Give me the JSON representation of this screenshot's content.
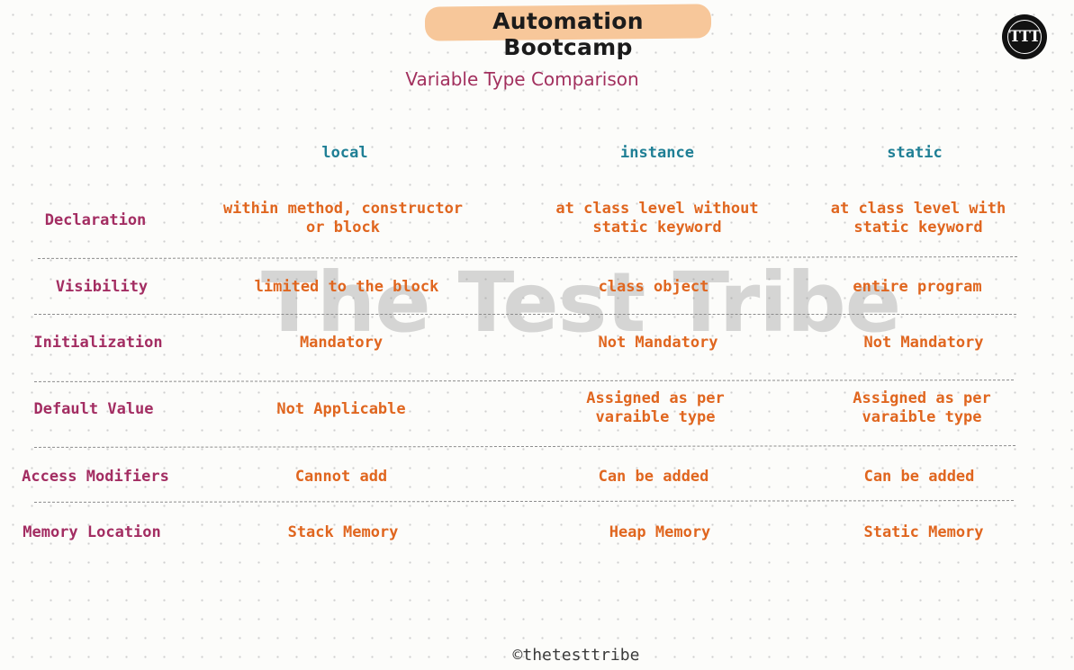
{
  "header": {
    "title": "Automation Bootcamp",
    "subtitle": "Variable Type Comparison",
    "logo_text": "TTT",
    "watermark": "The Test Tribe"
  },
  "table": {
    "columns": [
      "local",
      "instance",
      "static"
    ],
    "rows": [
      {
        "label": "Declaration",
        "local": "within method, constructor or block",
        "instance": "at class level without static keyword",
        "static": "at class level with static keyword"
      },
      {
        "label": "Visibility",
        "local": "limited to the block",
        "instance": "class object",
        "static": "entire program"
      },
      {
        "label": "Initialization",
        "local": "Mandatory",
        "instance": "Not Mandatory",
        "static": "Not Mandatory"
      },
      {
        "label": "Default Value",
        "local": "Not Applicable",
        "instance": "Assigned as per varaible type",
        "static": "Assigned as per varaible type"
      },
      {
        "label": "Access Modifiers",
        "local": "Cannot add",
        "instance": "Can be added",
        "static": "Can be added"
      },
      {
        "label": "Memory Location",
        "local": "Stack Memory",
        "instance": "Heap Memory",
        "static": "Static Memory"
      }
    ]
  },
  "footer": {
    "copyright": "©thetesttribe"
  },
  "colors": {
    "title_highlight": "#f7c79a",
    "subtitle": "#a2305e",
    "column_header": "#1f7f95",
    "row_label": "#a32d62",
    "cell_text": "#e0661f"
  }
}
